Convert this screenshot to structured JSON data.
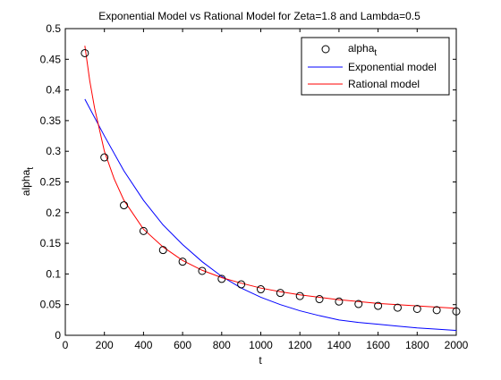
{
  "chart_data": {
    "type": "line",
    "title": "Exponential Model vs Rational Model for Zeta=1.8 and Lambda=0.5",
    "xlabel": "t",
    "ylabel": {
      "base": "alpha",
      "sub": "t"
    },
    "xlim": [
      0,
      2000
    ],
    "ylim": [
      0,
      0.5
    ],
    "xticks": [
      0,
      200,
      400,
      600,
      800,
      1000,
      1200,
      1400,
      1600,
      1800,
      2000
    ],
    "yticks": [
      0,
      0.05,
      0.1,
      0.15,
      0.2,
      0.25,
      0.3,
      0.35,
      0.4,
      0.45,
      0.5
    ],
    "grid": false,
    "legend_position": "top-right",
    "series": [
      {
        "name": "alpha",
        "name_sub": "t",
        "kind": "marker",
        "marker": "circle",
        "color": "#000000",
        "x": [
          100,
          200,
          300,
          400,
          500,
          600,
          700,
          800,
          900,
          1000,
          1100,
          1200,
          1300,
          1400,
          1500,
          1600,
          1700,
          1800,
          1900,
          2000
        ],
        "y": [
          0.46,
          0.29,
          0.212,
          0.17,
          0.139,
          0.12,
          0.105,
          0.092,
          0.083,
          0.075,
          0.069,
          0.064,
          0.059,
          0.055,
          0.051,
          0.048,
          0.045,
          0.043,
          0.041,
          0.039
        ]
      },
      {
        "name": "Exponential model",
        "kind": "line",
        "color": "#0000ff",
        "x": [
          100,
          200,
          300,
          400,
          500,
          600,
          700,
          800,
          900,
          1000,
          1100,
          1200,
          1300,
          1400,
          1500,
          1600,
          1700,
          1800,
          1900,
          2000
        ],
        "y": [
          0.385,
          0.325,
          0.268,
          0.22,
          0.18,
          0.148,
          0.12,
          0.096,
          0.077,
          0.062,
          0.05,
          0.04,
          0.032,
          0.025,
          0.021,
          0.018,
          0.015,
          0.012,
          0.01,
          0.008
        ]
      },
      {
        "name": "Rational model",
        "kind": "line",
        "color": "#ff0000",
        "x": [
          100,
          125,
          150,
          200,
          250,
          300,
          400,
          500,
          600,
          700,
          800,
          900,
          1000,
          1100,
          1200,
          1300,
          1400,
          1500,
          1600,
          1700,
          1800,
          1900,
          2000
        ],
        "y": [
          0.472,
          0.415,
          0.37,
          0.3,
          0.255,
          0.22,
          0.173,
          0.144,
          0.122,
          0.106,
          0.094,
          0.085,
          0.077,
          0.071,
          0.066,
          0.062,
          0.058,
          0.055,
          0.052,
          0.05,
          0.048,
          0.046,
          0.044
        ]
      }
    ]
  }
}
